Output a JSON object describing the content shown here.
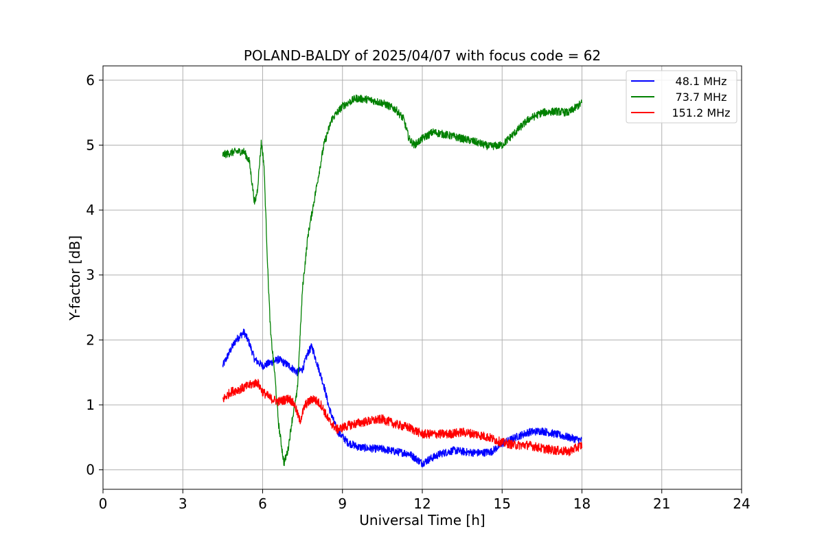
{
  "chart_data": {
    "type": "line",
    "title": "POLAND-BALDY of 2025/04/07 with focus code = 62",
    "xlabel": "Universal Time [h]",
    "ylabel": "Y-factor [dB]",
    "xlim": [
      0,
      24
    ],
    "ylim": [
      -0.3,
      6.22
    ],
    "xticks": [
      0,
      3,
      6,
      9,
      12,
      15,
      18,
      21,
      24
    ],
    "yticks": [
      0,
      1,
      2,
      3,
      4,
      5,
      6
    ],
    "grid": true,
    "legend_position": "top-right",
    "series": [
      {
        "name": "48.1 MHz",
        "color": "#0000ff",
        "noise": 0.06,
        "points": [
          [
            4.5,
            1.6
          ],
          [
            4.8,
            1.85
          ],
          [
            5.0,
            2.0
          ],
          [
            5.3,
            2.12
          ],
          [
            5.5,
            1.95
          ],
          [
            5.7,
            1.7
          ],
          [
            6.0,
            1.6
          ],
          [
            6.3,
            1.65
          ],
          [
            6.6,
            1.7
          ],
          [
            7.0,
            1.6
          ],
          [
            7.3,
            1.5
          ],
          [
            7.5,
            1.55
          ],
          [
            7.7,
            1.8
          ],
          [
            7.85,
            1.9
          ],
          [
            8.0,
            1.7
          ],
          [
            8.3,
            1.3
          ],
          [
            8.5,
            0.95
          ],
          [
            8.8,
            0.6
          ],
          [
            9.2,
            0.42
          ],
          [
            9.6,
            0.35
          ],
          [
            10.0,
            0.33
          ],
          [
            10.5,
            0.32
          ],
          [
            11.0,
            0.28
          ],
          [
            11.5,
            0.25
          ],
          [
            12.0,
            0.1
          ],
          [
            12.3,
            0.17
          ],
          [
            12.7,
            0.25
          ],
          [
            13.2,
            0.3
          ],
          [
            13.7,
            0.27
          ],
          [
            14.2,
            0.26
          ],
          [
            14.6,
            0.28
          ],
          [
            15.0,
            0.4
          ],
          [
            15.5,
            0.5
          ],
          [
            16.0,
            0.58
          ],
          [
            16.5,
            0.6
          ],
          [
            17.0,
            0.55
          ],
          [
            17.5,
            0.5
          ],
          [
            18.0,
            0.45
          ]
        ]
      },
      {
        "name": "73.7 MHz",
        "color": "#008000",
        "noise": 0.06,
        "points": [
          [
            4.5,
            4.85
          ],
          [
            4.8,
            4.88
          ],
          [
            5.0,
            4.9
          ],
          [
            5.3,
            4.9
          ],
          [
            5.5,
            4.75
          ],
          [
            5.7,
            4.1
          ],
          [
            5.8,
            4.3
          ],
          [
            5.95,
            5.05
          ],
          [
            6.05,
            4.7
          ],
          [
            6.2,
            3.0
          ],
          [
            6.3,
            2.1
          ],
          [
            6.45,
            1.5
          ],
          [
            6.6,
            0.7
          ],
          [
            6.8,
            0.1
          ],
          [
            6.95,
            0.3
          ],
          [
            7.1,
            0.75
          ],
          [
            7.3,
            1.2
          ],
          [
            7.5,
            2.8
          ],
          [
            7.7,
            3.6
          ],
          [
            8.0,
            4.3
          ],
          [
            8.3,
            5.0
          ],
          [
            8.6,
            5.4
          ],
          [
            9.0,
            5.6
          ],
          [
            9.5,
            5.72
          ],
          [
            10.0,
            5.7
          ],
          [
            10.5,
            5.65
          ],
          [
            11.0,
            5.55
          ],
          [
            11.3,
            5.4
          ],
          [
            11.5,
            5.1
          ],
          [
            11.7,
            5.0
          ],
          [
            12.0,
            5.1
          ],
          [
            12.4,
            5.2
          ],
          [
            13.0,
            5.15
          ],
          [
            13.5,
            5.1
          ],
          [
            14.0,
            5.05
          ],
          [
            14.5,
            4.98
          ],
          [
            15.0,
            5.0
          ],
          [
            15.5,
            5.2
          ],
          [
            16.0,
            5.4
          ],
          [
            16.5,
            5.5
          ],
          [
            17.0,
            5.52
          ],
          [
            17.5,
            5.5
          ],
          [
            18.0,
            5.65
          ]
        ]
      },
      {
        "name": "151.2 MHz",
        "color": "#ff0000",
        "noise": 0.07,
        "points": [
          [
            4.5,
            1.08
          ],
          [
            4.8,
            1.2
          ],
          [
            5.2,
            1.25
          ],
          [
            5.5,
            1.3
          ],
          [
            5.8,
            1.35
          ],
          [
            6.0,
            1.2
          ],
          [
            6.3,
            1.1
          ],
          [
            6.6,
            1.05
          ],
          [
            7.0,
            1.1
          ],
          [
            7.2,
            1.0
          ],
          [
            7.4,
            0.75
          ],
          [
            7.6,
            1.0
          ],
          [
            7.9,
            1.1
          ],
          [
            8.2,
            1.0
          ],
          [
            8.5,
            0.75
          ],
          [
            8.8,
            0.62
          ],
          [
            9.2,
            0.68
          ],
          [
            9.6,
            0.72
          ],
          [
            10.0,
            0.75
          ],
          [
            10.5,
            0.78
          ],
          [
            11.0,
            0.7
          ],
          [
            11.5,
            0.65
          ],
          [
            12.0,
            0.55
          ],
          [
            12.5,
            0.55
          ],
          [
            13.0,
            0.55
          ],
          [
            13.5,
            0.58
          ],
          [
            14.0,
            0.55
          ],
          [
            14.5,
            0.5
          ],
          [
            15.0,
            0.42
          ],
          [
            15.5,
            0.38
          ],
          [
            16.0,
            0.38
          ],
          [
            16.5,
            0.33
          ],
          [
            17.0,
            0.3
          ],
          [
            17.5,
            0.28
          ],
          [
            18.0,
            0.38
          ]
        ]
      }
    ]
  }
}
